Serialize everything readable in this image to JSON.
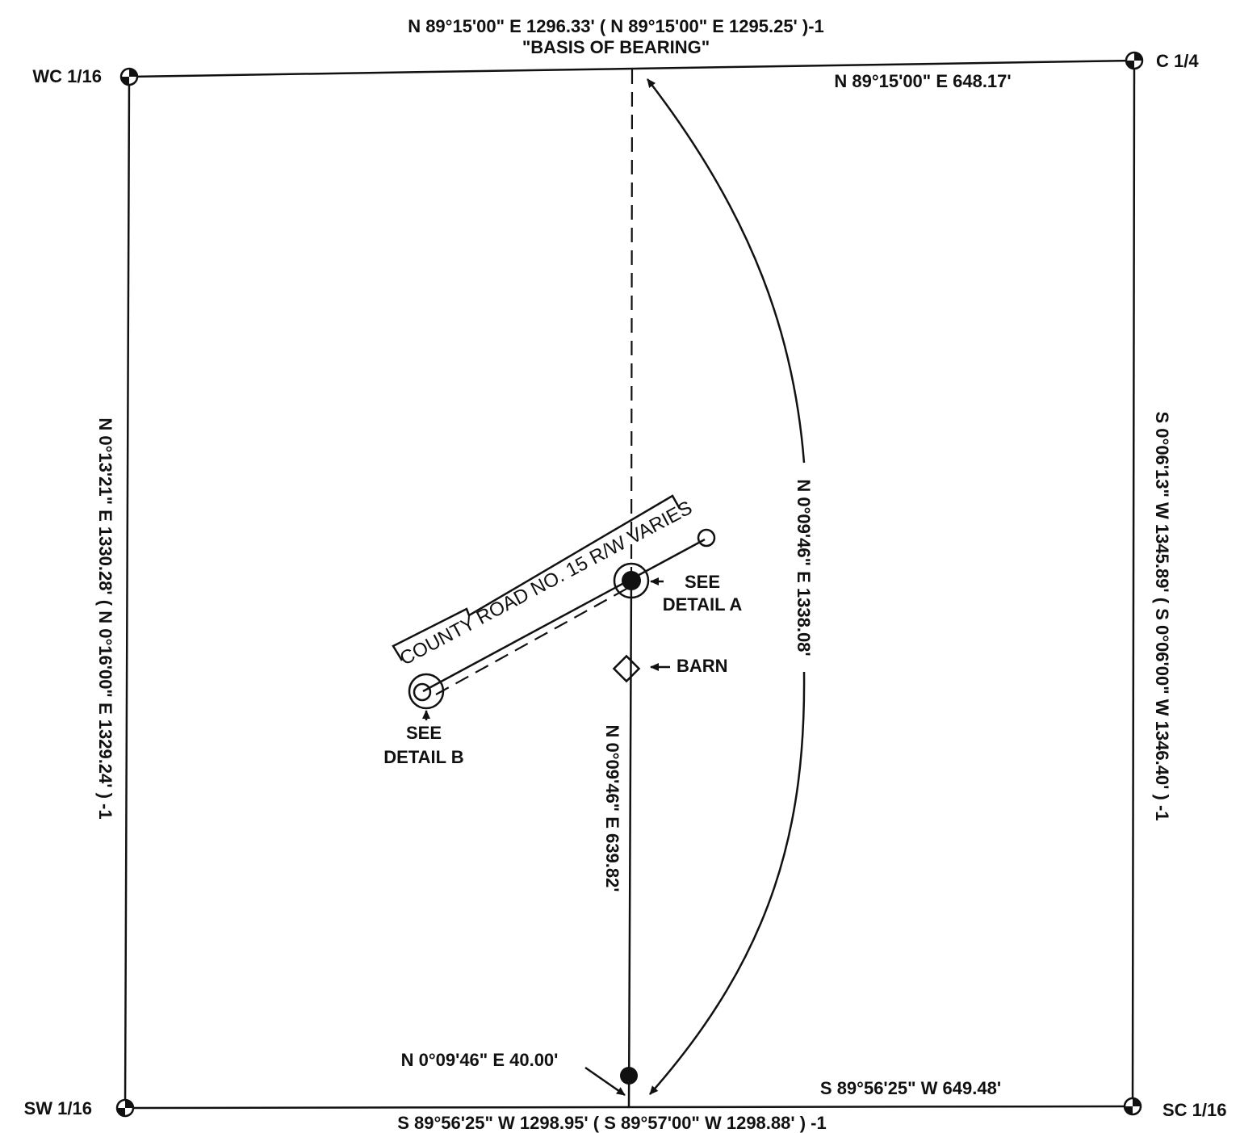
{
  "corners": {
    "wc": "WC 1/16",
    "c": "C 1/4",
    "sw": "SW 1/16",
    "sc": "SC 1/16"
  },
  "north_line": {
    "bearing": "N 89°15'00\" E 1296.33' ( N 89°15'00\" E 1295.25' )-1",
    "basis": "\"BASIS OF BEARING\"",
    "partial": "N 89°15'00\" E 648.17'"
  },
  "south_line": {
    "bearing": "S 89°56'25\" W 1298.95' ( S 89°57'00\" W 1298.88' ) -1",
    "partial": "S 89°56'25\" W 649.48'"
  },
  "west_line": {
    "bearing": "N 0°13'21\" E 1330.28' ( N 0°16'00\" E 1329.24' ) -1"
  },
  "east_line": {
    "bearing": "S 0°06'13\" W 1345.89' ( S 0°06'00\" W 1346.40' ) -1"
  },
  "center_line": {
    "arc_bearing": "N 0°09'46\" E 1338.08'",
    "lower_bearing": "N 0°09'46\" E 639.82'",
    "offset": "N 0°09'46\" E 40.00'"
  },
  "road": {
    "label": "COUNTY ROAD NO. 15 R/W VARIES"
  },
  "callouts": {
    "detail_a_line1": "SEE",
    "detail_a_line2": "DETAIL A",
    "detail_b_line1": "SEE",
    "detail_b_line2": "DETAIL B",
    "barn": "BARN"
  },
  "colors": {
    "ink": "#111111",
    "paper": "#ffffff"
  }
}
